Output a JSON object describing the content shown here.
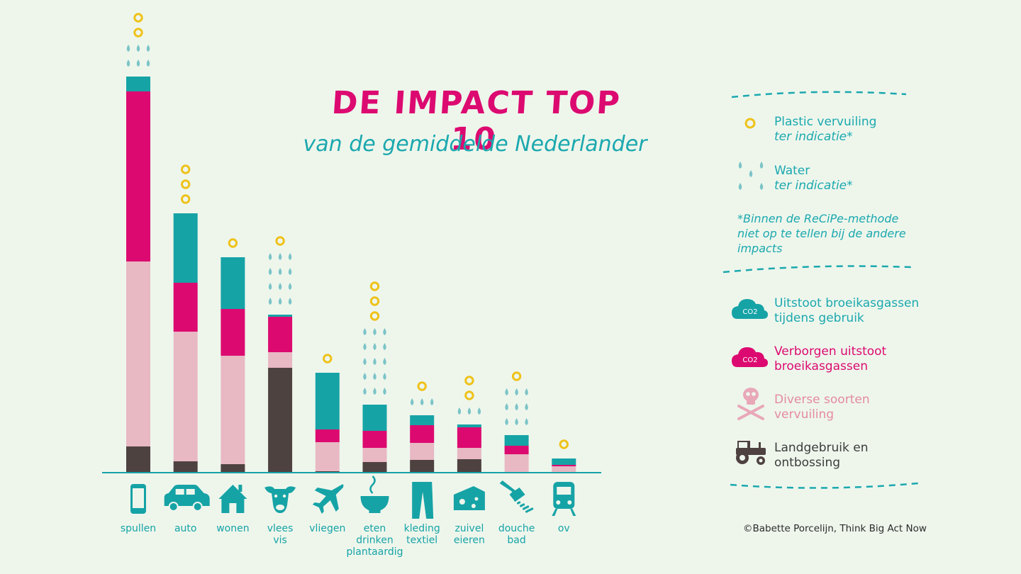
{
  "title": "DE IMPACT TOP 10",
  "subtitle": "van de gemiddelde Nederlander",
  "copyright": "©Babette Porcelijn, Think Big Act Now",
  "colors": {
    "use_emissions": "#16a3a6",
    "hidden_emissions": "#dc0a70",
    "pollution": "#e8b8c3",
    "land_use": "#4e4240",
    "plastic": "#efc21a",
    "water": "#7cc4c8",
    "background": "#eef6ec"
  },
  "legend": {
    "plastic_label": "Plastic vervuiling",
    "plastic_sub": "ter indicatie*",
    "water_label": "Water",
    "water_sub": "ter indicatie*",
    "note_line1": "*Binnen de ReCiPe-methode",
    "note_line2": "niet op te tellen bij de andere",
    "note_line3": "impacts",
    "use_line1": "Uitstoot broeikasgassen",
    "use_line2": "tijdens gebruik",
    "hidden_line1": "Verborgen uitstoot",
    "hidden_line2": "broeikasgassen",
    "pollution_line1": "Diverse soorten",
    "pollution_line2": "vervuiling",
    "land_line1": "Landgebruik en",
    "land_line2": "ontbossing",
    "co2_icon_text": "CO2"
  },
  "chart_data": {
    "type": "bar",
    "stacked": true,
    "categories": [
      "spullen",
      "auto",
      "wonen",
      "vlees vis",
      "vliegen",
      "eten drinken plantaardig",
      "kleding textiel",
      "zuivel eieren",
      "douche bad",
      "ov"
    ],
    "category_lines": [
      [
        "spullen"
      ],
      [
        "auto"
      ],
      [
        "wonen"
      ],
      [
        "vlees",
        "vis"
      ],
      [
        "vliegen"
      ],
      [
        "eten",
        "drinken",
        "plantaardig"
      ],
      [
        "kleding",
        "textiel"
      ],
      [
        "zuivel",
        "eieren"
      ],
      [
        "douche",
        "bad"
      ],
      [
        "ov"
      ]
    ],
    "icons": [
      "phone-icon",
      "car-icon",
      "house-icon",
      "cow-icon",
      "airplane-icon",
      "bowl-icon",
      "trousers-icon",
      "cheese-icon",
      "shower-icon",
      "train-icon"
    ],
    "series": [
      {
        "name": "Landgebruik en ontbossing",
        "color": "#4e4240",
        "values": [
          37,
          16,
          12,
          148,
          2,
          15,
          18,
          19,
          0,
          0
        ]
      },
      {
        "name": "Diverse soorten vervuiling",
        "color": "#e8b8c3",
        "values": [
          261,
          183,
          153,
          22,
          41,
          20,
          24,
          16,
          26,
          9
        ]
      },
      {
        "name": "Verborgen uitstoot broeikasgassen",
        "color": "#dc0a70",
        "values": [
          240,
          69,
          66,
          50,
          18,
          24,
          25,
          29,
          12,
          2
        ]
      },
      {
        "name": "Uitstoot broeikasgassen tijdens gebruik",
        "color": "#16a3a6",
        "values": [
          21,
          98,
          73,
          3,
          80,
          37,
          14,
          4,
          15,
          9
        ]
      }
    ],
    "plastic_indication": [
      2,
      3,
      1,
      1,
      1,
      3,
      1,
      2,
      1,
      1
    ],
    "water_indication_rows": [
      2,
      0,
      0,
      4,
      0,
      5,
      1,
      1,
      3,
      0
    ],
    "ylim": [
      0,
      560
    ],
    "xlabel": "",
    "ylabel": "",
    "grid": false,
    "legend_position": "right"
  }
}
